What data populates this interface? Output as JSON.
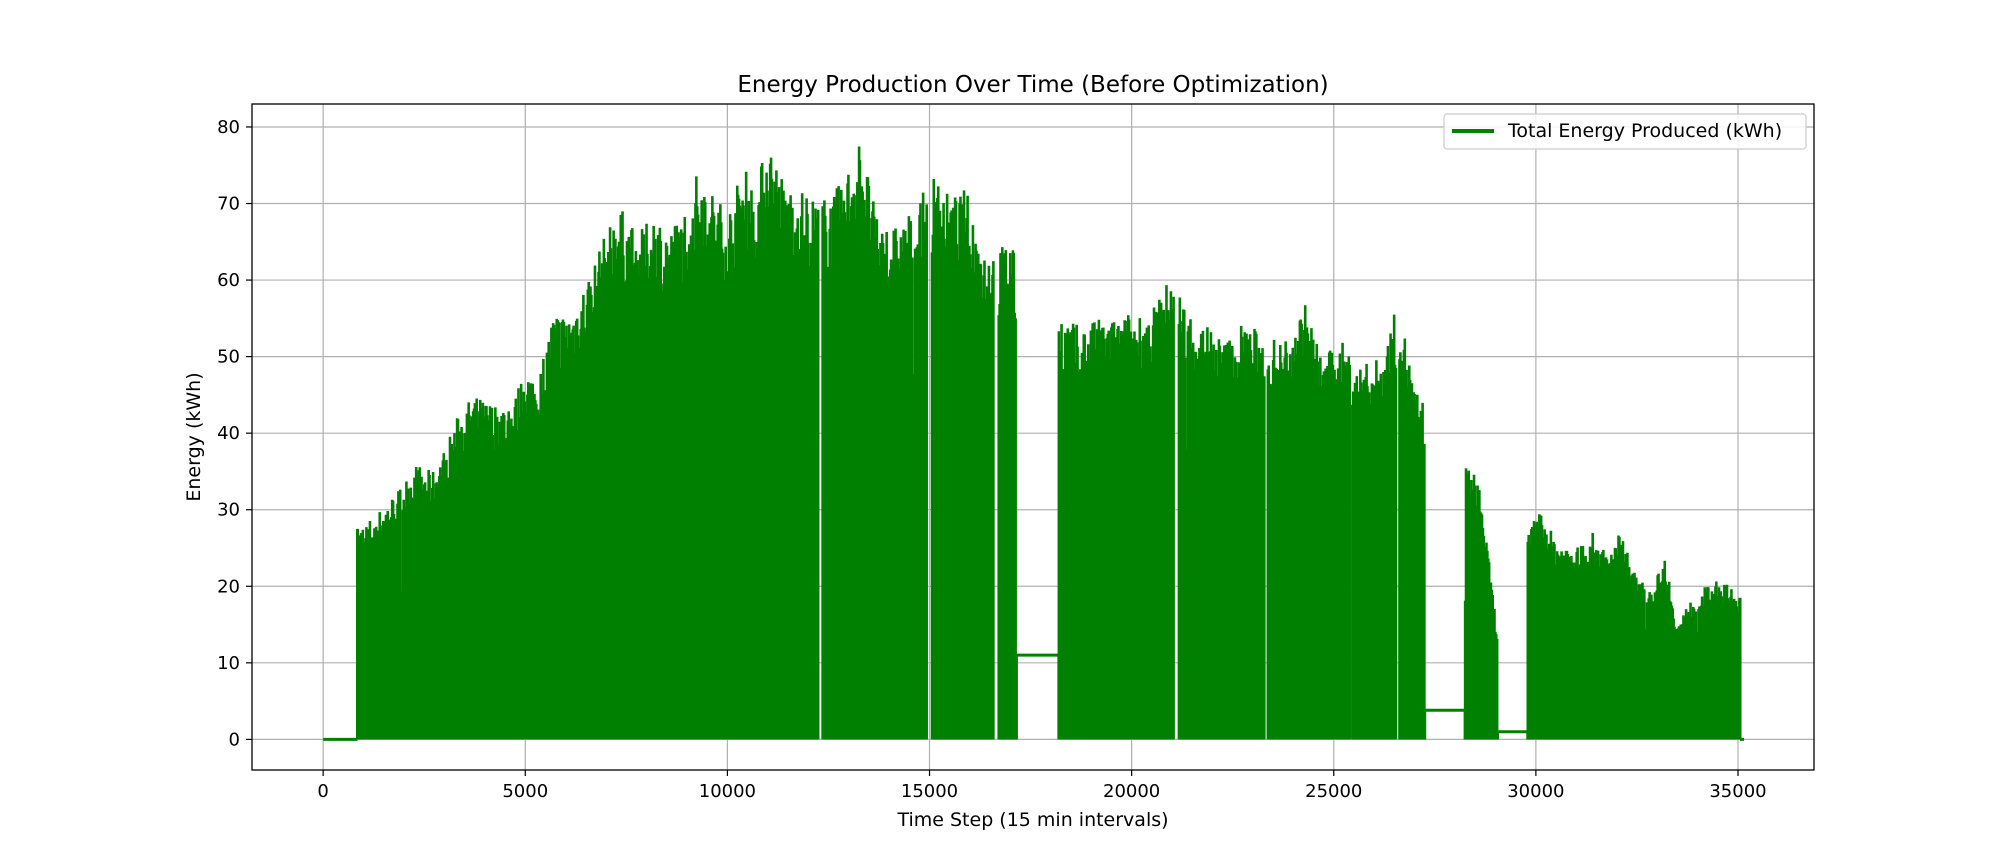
{
  "chart_data": {
    "type": "line",
    "title": "Energy Production Over Time (Before Optimization)",
    "xlabel": "Time Step (15 min intervals)",
    "ylabel": "Energy (kWh)",
    "xlim": [
      -1760,
      36880
    ],
    "ylim": [
      -4,
      83
    ],
    "xticks": [
      0,
      5000,
      10000,
      15000,
      20000,
      25000,
      30000,
      35000
    ],
    "yticks": [
      0,
      10,
      20,
      30,
      40,
      50,
      60,
      70,
      80
    ],
    "grid": true,
    "legend_position": "top-right",
    "series": [
      {
        "name": "Total Energy Produced (kWh)",
        "color": "#008000",
        "baseline_segments": [
          [
            0,
            850,
            0
          ],
          [
            17150,
            18200,
            11
          ],
          [
            27250,
            28250,
            3.8
          ],
          [
            29050,
            29800,
            1
          ],
          [
            35050,
            35150,
            0
          ]
        ],
        "active_ranges": [
          [
            850,
            17150
          ],
          [
            18200,
            27250
          ],
          [
            28250,
            29050
          ],
          [
            29800,
            35050
          ]
        ],
        "peak_envelope": [
          [
            850,
            27.5
          ],
          [
            1400,
            30
          ],
          [
            1900,
            33
          ],
          [
            2300,
            36
          ],
          [
            2700,
            35
          ],
          [
            3000,
            38
          ],
          [
            3300,
            42
          ],
          [
            3700,
            45
          ],
          [
            4200,
            44
          ],
          [
            4700,
            44
          ],
          [
            5000,
            49
          ],
          [
            5300,
            47
          ],
          [
            5700,
            56
          ],
          [
            6100,
            56
          ],
          [
            6500,
            60
          ],
          [
            6900,
            65
          ],
          [
            7300,
            70
          ],
          [
            7800,
            66
          ],
          [
            8200,
            69
          ],
          [
            8600,
            67
          ],
          [
            9000,
            70
          ],
          [
            9300,
            75
          ],
          [
            9600,
            72
          ],
          [
            10000,
            69
          ],
          [
            10400,
            75
          ],
          [
            10700,
            72
          ],
          [
            11000,
            79
          ],
          [
            11400,
            73
          ],
          [
            11800,
            72
          ],
          [
            12200,
            71
          ],
          [
            12600,
            71
          ],
          [
            13000,
            75
          ],
          [
            13300,
            79
          ],
          [
            13700,
            68
          ],
          [
            14200,
            67
          ],
          [
            14700,
            70
          ],
          [
            15100,
            74
          ],
          [
            15500,
            71
          ],
          [
            15900,
            72
          ],
          [
            16300,
            65
          ],
          [
            16700,
            64
          ],
          [
            17000,
            66
          ],
          [
            17150,
            62
          ],
          [
            18200,
            56
          ],
          [
            18700,
            54
          ],
          [
            19200,
            55
          ],
          [
            19700,
            55
          ],
          [
            20000,
            56
          ],
          [
            20500,
            56
          ],
          [
            21000,
            61
          ],
          [
            21400,
            56
          ],
          [
            21800,
            55
          ],
          [
            22300,
            52
          ],
          [
            22800,
            55
          ],
          [
            23200,
            53
          ],
          [
            23700,
            52
          ],
          [
            24300,
            57
          ],
          [
            24700,
            50
          ],
          [
            25200,
            52
          ],
          [
            25700,
            49
          ],
          [
            26200,
            50
          ],
          [
            26600,
            57.5
          ],
          [
            27000,
            46
          ],
          [
            27250,
            44
          ],
          [
            28250,
            36
          ],
          [
            28600,
            34
          ],
          [
            29050,
            14
          ],
          [
            29800,
            27
          ],
          [
            30100,
            30
          ],
          [
            30500,
            26
          ],
          [
            31000,
            25
          ],
          [
            31400,
            27
          ],
          [
            31800,
            24
          ],
          [
            32100,
            27.5
          ],
          [
            32500,
            21
          ],
          [
            32900,
            20
          ],
          [
            33200,
            24
          ],
          [
            33500,
            15
          ],
          [
            33800,
            18
          ],
          [
            34200,
            20
          ],
          [
            34600,
            21
          ],
          [
            35050,
            18.5
          ]
        ],
        "gaps": [
          [
            12250,
            12350
          ],
          [
            14950,
            15050
          ],
          [
            16600,
            16700
          ],
          [
            21050,
            21150
          ],
          [
            23300,
            23350
          ],
          [
            25400,
            25450
          ],
          [
            26550,
            26620
          ]
        ]
      }
    ]
  }
}
